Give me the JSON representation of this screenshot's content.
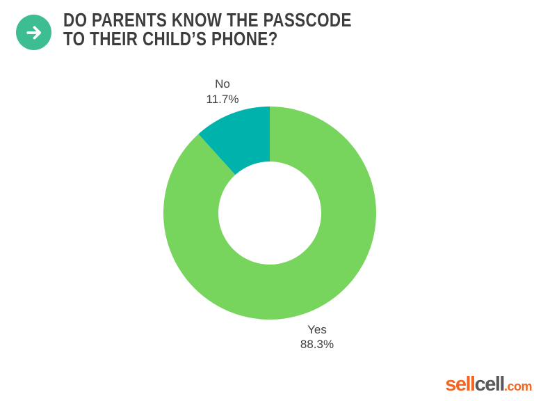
{
  "header": {
    "title_line1": "DO PARENTS KNOW THE PASSCODE",
    "title_line2": "TO THEIR CHILD’S PHONE?",
    "icon": "arrow-right-icon",
    "icon_bg_color": "#3dbe92",
    "icon_arrow_color": "#ffffff",
    "title_color": "#3d3d3d"
  },
  "chart_data": {
    "type": "pie",
    "subtype": "donut",
    "title": "Do parents know the passcode to their child's phone?",
    "categories": [
      "Yes",
      "No"
    ],
    "values": [
      88.3,
      11.7
    ],
    "slices": [
      {
        "label": "Yes",
        "value": 88.3,
        "display": "88.3%",
        "color": "#77d45c"
      },
      {
        "label": "No",
        "value": 11.7,
        "display": "11.7%",
        "color": "#00b2ac"
      }
    ],
    "start_angle_deg": 0,
    "direction": "clockwise",
    "inner_radius_ratio": 0.4837,
    "legend": "none",
    "label_position": "outside",
    "label_color": "#3f3f3f",
    "background": "#ffffff"
  },
  "footer": {
    "logo_part1": "sell",
    "logo_part2": "cell",
    "logo_part3": ".com",
    "logo_color_accent": "#f26522",
    "logo_color_gray": "#58595b"
  }
}
